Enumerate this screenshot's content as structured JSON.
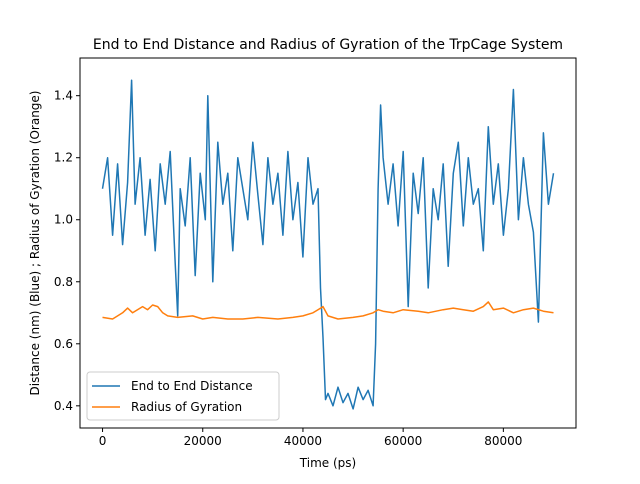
{
  "chart_data": {
    "type": "line",
    "title": "End to End Distance and Radius of Gyration of the TrpCage System",
    "xlabel": "Time (ps)",
    "ylabel": "Distance (nm) (Blue) ; Radius of Gyration (Orange)",
    "xlim": [
      -4500,
      94500
    ],
    "ylim": [
      0.3285,
      1.5215
    ],
    "x_ticks": [
      0,
      20000,
      40000,
      60000,
      80000
    ],
    "x_tick_labels": [
      "0",
      "20000",
      "40000",
      "60000",
      "80000"
    ],
    "y_ticks": [
      0.4,
      0.6,
      0.8,
      1.0,
      1.2,
      1.4
    ],
    "y_tick_labels": [
      "0.4",
      "0.6",
      "0.8",
      "1.0",
      "1.2",
      "1.4"
    ],
    "grid": false,
    "legend_position": "lower-left",
    "legend": [
      "End to End Distance",
      "Radius of Gyration"
    ],
    "series": [
      {
        "name": "End to End Distance",
        "color": "#1f77b4",
        "x": [
          0,
          1000,
          2000,
          3000,
          4000,
          5000,
          5800,
          6500,
          7500,
          8500,
          9500,
          10500,
          11500,
          12500,
          13500,
          14500,
          15000,
          15500,
          16500,
          17500,
          18500,
          19500,
          20500,
          21000,
          22000,
          23000,
          24000,
          25000,
          26000,
          27000,
          28000,
          29000,
          30000,
          31000,
          32000,
          33000,
          34000,
          35000,
          36000,
          37000,
          38000,
          39000,
          40000,
          41000,
          42000,
          43000,
          43500,
          44000,
          44500,
          45000,
          46000,
          47000,
          48000,
          49000,
          50000,
          51000,
          52000,
          53000,
          54000,
          54500,
          55000,
          55500,
          56000,
          57000,
          58000,
          59000,
          60000,
          61000,
          62000,
          63000,
          64000,
          65000,
          66000,
          67000,
          68000,
          69000,
          70000,
          71000,
          72000,
          73000,
          74000,
          75000,
          76000,
          77000,
          78000,
          79000,
          80000,
          81000,
          82000,
          83000,
          84000,
          85000,
          86000,
          87000,
          88000,
          89000,
          90000
        ],
        "y": [
          1.1,
          1.2,
          0.95,
          1.18,
          0.92,
          1.12,
          1.45,
          1.05,
          1.2,
          0.95,
          1.13,
          0.9,
          1.18,
          1.05,
          1.22,
          0.86,
          0.69,
          1.1,
          0.98,
          1.2,
          0.82,
          1.15,
          1.0,
          1.4,
          0.8,
          1.25,
          1.05,
          1.15,
          0.9,
          1.2,
          1.1,
          1.0,
          1.25,
          1.08,
          0.92,
          1.2,
          1.05,
          1.15,
          0.95,
          1.22,
          1.0,
          1.12,
          0.88,
          1.2,
          1.05,
          1.1,
          0.78,
          0.62,
          0.42,
          0.44,
          0.4,
          0.46,
          0.41,
          0.44,
          0.39,
          0.46,
          0.42,
          0.45,
          0.4,
          0.6,
          1.1,
          1.37,
          1.2,
          1.05,
          1.18,
          0.98,
          1.22,
          0.72,
          1.15,
          1.02,
          1.2,
          0.78,
          1.1,
          1.0,
          1.18,
          0.85,
          1.15,
          1.25,
          0.98,
          1.2,
          1.05,
          1.1,
          0.9,
          1.3,
          1.05,
          1.18,
          0.95,
          1.1,
          1.42,
          1.0,
          1.2,
          1.05,
          0.96,
          0.67,
          1.28,
          1.05,
          1.15
        ]
      },
      {
        "name": "Radius of Gyration",
        "color": "#ff7f0e",
        "x": [
          0,
          2000,
          4000,
          5000,
          6000,
          8000,
          9000,
          10000,
          11000,
          12000,
          13000,
          15000,
          18000,
          20000,
          22000,
          25000,
          28000,
          31000,
          35000,
          38000,
          40000,
          42000,
          43000,
          44000,
          45000,
          47000,
          50000,
          52000,
          54000,
          55000,
          56000,
          58000,
          60000,
          63000,
          65000,
          68000,
          70000,
          72000,
          74000,
          76000,
          77000,
          78000,
          80000,
          82000,
          84000,
          86000,
          88000,
          90000
        ],
        "y": [
          0.685,
          0.68,
          0.7,
          0.715,
          0.7,
          0.72,
          0.71,
          0.725,
          0.72,
          0.7,
          0.69,
          0.685,
          0.69,
          0.68,
          0.685,
          0.68,
          0.68,
          0.685,
          0.68,
          0.685,
          0.69,
          0.7,
          0.71,
          0.72,
          0.69,
          0.68,
          0.685,
          0.69,
          0.7,
          0.71,
          0.705,
          0.7,
          0.71,
          0.705,
          0.7,
          0.71,
          0.715,
          0.71,
          0.705,
          0.72,
          0.735,
          0.71,
          0.715,
          0.7,
          0.71,
          0.715,
          0.705,
          0.7
        ]
      }
    ]
  }
}
